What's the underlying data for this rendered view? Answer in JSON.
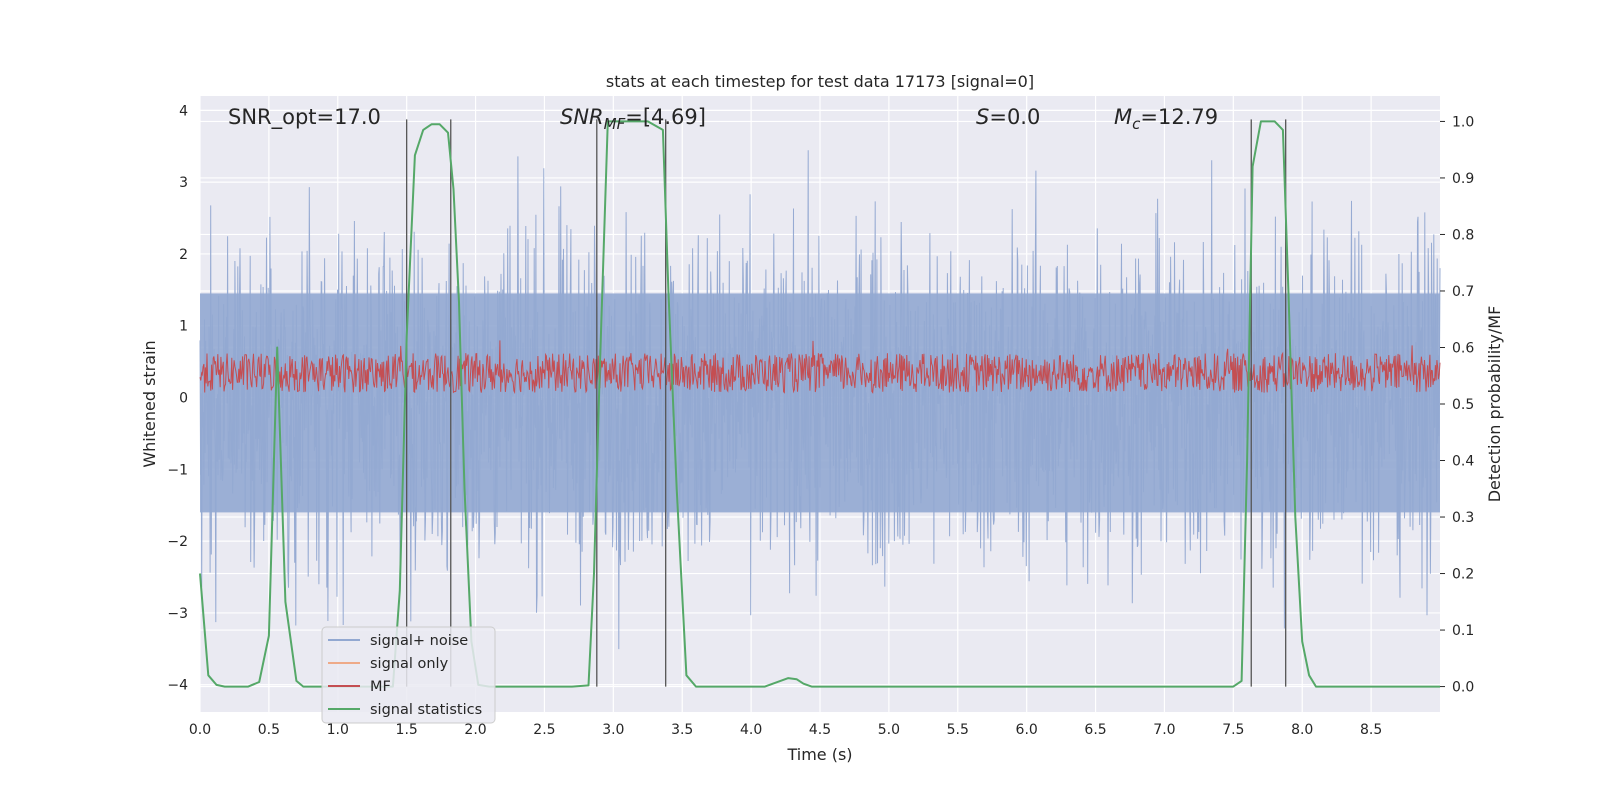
{
  "chart_data": {
    "type": "line",
    "title": "stats at each timestep for test data 17173 [signal=0]",
    "xlabel": "Time (s)",
    "ylabel_left": "Whitened strain",
    "ylabel_right": "Detection probability/MF",
    "xlim": [
      0.0,
      9.0
    ],
    "ylim_left": [
      -4.38,
      4.2
    ],
    "ylim_right": [
      -0.045,
      1.045
    ],
    "xticks": [
      "0.0",
      "0.5",
      "1.0",
      "1.5",
      "2.0",
      "2.5",
      "3.0",
      "3.5",
      "4.0",
      "4.5",
      "5.0",
      "5.5",
      "6.0",
      "6.5",
      "7.0",
      "7.5",
      "8.0",
      "8.5"
    ],
    "yticks_left": [
      "4",
      "3",
      "2",
      "1",
      "0",
      "−1",
      "−2",
      "−3",
      "−4"
    ],
    "yticks_right": [
      "1.0",
      "0.9",
      "0.8",
      "0.7",
      "0.6",
      "0.5",
      "0.4",
      "0.3",
      "0.2",
      "0.1",
      "0.0"
    ],
    "annotations": {
      "snr_opt": "SNR_opt=17.0",
      "snr_mf_label": "SNR",
      "snr_mf_sub": "MF",
      "snr_mf_value": "=[4.69]",
      "s_label": "S",
      "s_value": "=0.0",
      "mc_label": "M",
      "mc_sub": "c",
      "mc_value": "=12.79"
    },
    "vertical_markers": [
      1.5,
      1.82,
      2.88,
      3.38,
      7.63,
      7.88
    ],
    "series": [
      {
        "name": "signal+ noise",
        "color": "#92a8d1",
        "axis": "left",
        "description_range": [
          -4.0,
          4.0
        ]
      },
      {
        "name": "signal only",
        "color": "#eeaa88",
        "axis": "left"
      },
      {
        "name": "MF",
        "color": "#c44e52",
        "axis": "right"
      },
      {
        "name": "signal statistics",
        "color": "#55a868",
        "axis": "right",
        "x": [
          0.0,
          0.06,
          0.12,
          0.18,
          0.25,
          0.35,
          0.43,
          0.5,
          0.56,
          0.62,
          0.7,
          0.75,
          0.85,
          1.0,
          1.2,
          1.4,
          1.45,
          1.5,
          1.56,
          1.62,
          1.68,
          1.74,
          1.8,
          1.84,
          1.88,
          1.92,
          1.97,
          2.02,
          2.1,
          2.4,
          2.7,
          2.82,
          2.86,
          2.9,
          2.96,
          3.1,
          3.25,
          3.36,
          3.4,
          3.46,
          3.53,
          3.6,
          3.8,
          4.1,
          4.27,
          4.33,
          4.38,
          4.44,
          4.6,
          5.0,
          6.0,
          7.0,
          7.5,
          7.56,
          7.6,
          7.64,
          7.7,
          7.8,
          7.86,
          7.9,
          7.95,
          8.0,
          8.05,
          8.1,
          8.5,
          9.0
        ],
        "y": [
          0.2,
          0.02,
          0.003,
          0.0,
          0.0,
          0.0,
          0.008,
          0.09,
          0.6,
          0.15,
          0.01,
          0.0,
          0.0,
          0.0,
          0.0,
          0.0,
          0.17,
          0.62,
          0.94,
          0.985,
          0.995,
          0.995,
          0.98,
          0.88,
          0.68,
          0.35,
          0.08,
          0.003,
          0.0,
          0.0,
          0.0,
          0.002,
          0.2,
          0.55,
          1.0,
          1.0,
          1.0,
          0.985,
          0.7,
          0.35,
          0.02,
          0.0,
          0.0,
          0.0,
          0.015,
          0.013,
          0.005,
          0.0,
          0.0,
          0.0,
          0.0,
          0.0,
          0.0,
          0.01,
          0.4,
          0.92,
          1.0,
          1.0,
          0.985,
          0.7,
          0.3,
          0.08,
          0.02,
          0.0,
          0.0,
          0.0
        ]
      }
    ],
    "legend": {
      "location": "lower-left",
      "entries": [
        "signal+ noise",
        "signal only",
        "MF",
        "signal statistics"
      ]
    },
    "grid": true
  }
}
